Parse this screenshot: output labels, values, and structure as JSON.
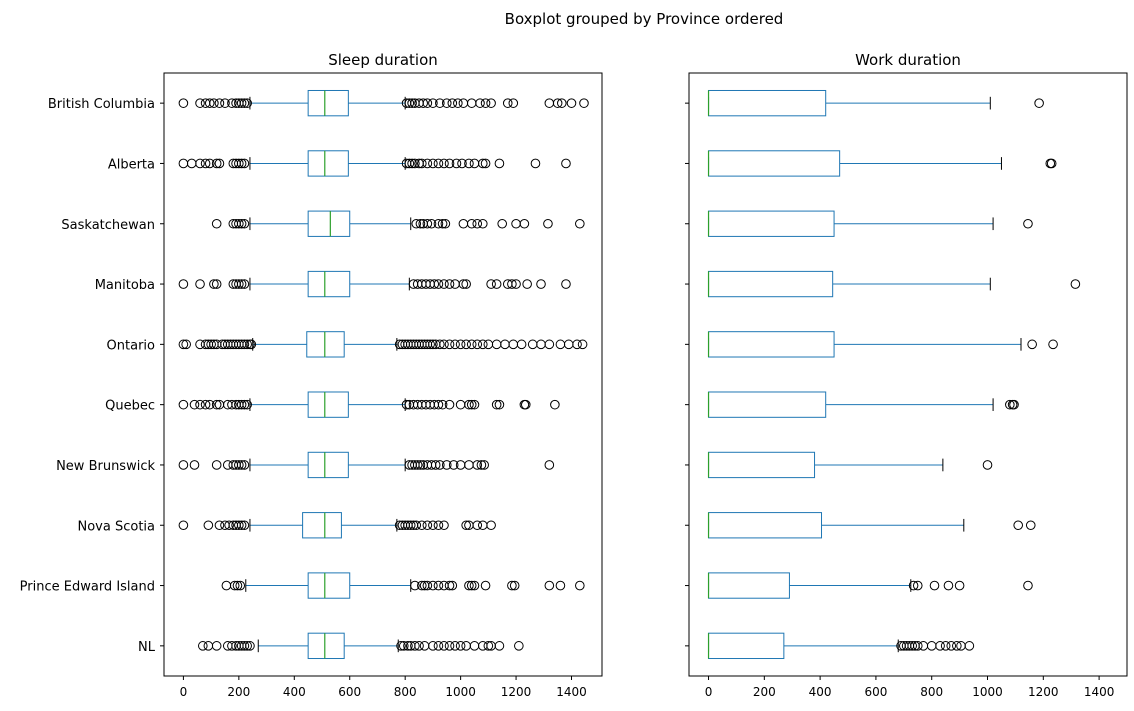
{
  "chart_data": {
    "type": "boxplot",
    "suptitle": "Boxplot grouped by Province ordered",
    "orientation": "horizontal",
    "categories": [
      "British Columbia",
      "Alberta",
      "Saskatchewan",
      "Manitoba",
      "Ontario",
      "Quebec",
      "New Brunswick",
      "Nova Scotia",
      "Prince Edward Island",
      "NL"
    ],
    "box_color": "#1f77b4",
    "median_color": "#2ca02c",
    "whisker_cap_color": "#000000",
    "flier_marker": "open-circle",
    "panels": [
      {
        "title": "Sleep duration",
        "xlim": [
          -70,
          1510
        ],
        "xticks": [
          0,
          200,
          400,
          600,
          800,
          1000,
          1200,
          1400
        ],
        "xtick_labels": [
          "0",
          "200",
          "400",
          "600",
          "800",
          "1000",
          "1200",
          "1400"
        ],
        "boxes": [
          {
            "category": "British Columbia",
            "whislo": 240,
            "q1": 450,
            "med": 510,
            "q3": 595,
            "whishi": 800,
            "fliers": [
              0,
              60,
              80,
              95,
              110,
              130,
              150,
              175,
              190,
              200,
              210,
              220,
              230,
              805,
              815,
              825,
              835,
              850,
              865,
              880,
              900,
              925,
              950,
              970,
              990,
              1010,
              1040,
              1070,
              1090,
              1110,
              1170,
              1190,
              1320,
              1350,
              1365,
              1400,
              1445
            ]
          },
          {
            "category": "Alberta",
            "whislo": 240,
            "q1": 450,
            "med": 510,
            "q3": 595,
            "whishi": 800,
            "fliers": [
              0,
              30,
              60,
              80,
              95,
              120,
              130,
              180,
              190,
              200,
              210,
              220,
              805,
              815,
              825,
              835,
              850,
              860,
              880,
              900,
              920,
              940,
              960,
              985,
              1005,
              1030,
              1050,
              1080,
              1090,
              1140,
              1270,
              1380
            ]
          },
          {
            "category": "Saskatchewan",
            "whislo": 240,
            "q1": 450,
            "med": 530,
            "q3": 600,
            "whishi": 820,
            "fliers": [
              120,
              180,
              190,
              200,
              210,
              220,
              840,
              855,
              865,
              880,
              895,
              920,
              935,
              945,
              1010,
              1040,
              1060,
              1080,
              1150,
              1200,
              1230,
              1315,
              1430
            ]
          },
          {
            "category": "Manitoba",
            "whislo": 240,
            "q1": 450,
            "med": 510,
            "q3": 600,
            "whishi": 815,
            "fliers": [
              0,
              60,
              110,
              120,
              180,
              190,
              200,
              210,
              220,
              830,
              845,
              860,
              875,
              890,
              905,
              920,
              940,
              960,
              980,
              1010,
              1020,
              1110,
              1130,
              1170,
              1185,
              1200,
              1240,
              1290,
              1380
            ]
          },
          {
            "category": "Ontario",
            "whislo": 250,
            "q1": 445,
            "med": 510,
            "q3": 580,
            "whishi": 770,
            "fliers": [
              0,
              10,
              60,
              80,
              90,
              100,
              110,
              120,
              140,
              150,
              160,
              170,
              180,
              190,
              200,
              210,
              220,
              230,
              240,
              245,
              780,
              790,
              800,
              810,
              820,
              830,
              840,
              850,
              860,
              870,
              880,
              890,
              900,
              910,
              925,
              940,
              960,
              980,
              1000,
              1020,
              1040,
              1060,
              1080,
              1100,
              1130,
              1160,
              1190,
              1220,
              1260,
              1290,
              1320,
              1360,
              1390,
              1420,
              1440
            ]
          },
          {
            "category": "Quebec",
            "whislo": 240,
            "q1": 450,
            "med": 510,
            "q3": 595,
            "whishi": 800,
            "fliers": [
              0,
              40,
              60,
              80,
              95,
              120,
              130,
              160,
              175,
              190,
              200,
              210,
              220,
              230,
              805,
              815,
              830,
              845,
              860,
              875,
              890,
              905,
              920,
              935,
              960,
              1000,
              1030,
              1040,
              1050,
              1130,
              1140,
              1230,
              1235,
              1340
            ]
          },
          {
            "category": "New Brunswick",
            "whislo": 240,
            "q1": 450,
            "med": 510,
            "q3": 595,
            "whishi": 800,
            "fliers": [
              0,
              40,
              120,
              160,
              180,
              190,
              200,
              210,
              220,
              815,
              825,
              835,
              845,
              855,
              865,
              880,
              895,
              910,
              925,
              950,
              975,
              1000,
              1030,
              1060,
              1075,
              1085,
              1320
            ]
          },
          {
            "category": "Nova Scotia",
            "whislo": 240,
            "q1": 430,
            "med": 510,
            "q3": 570,
            "whishi": 770,
            "fliers": [
              0,
              90,
              130,
              150,
              165,
              180,
              190,
              200,
              210,
              220,
              780,
              790,
              800,
              810,
              820,
              830,
              840,
              860,
              880,
              900,
              920,
              940,
              1020,
              1030,
              1060,
              1080,
              1110
            ]
          },
          {
            "category": "Prince Edward Island",
            "whislo": 225,
            "q1": 450,
            "med": 510,
            "q3": 600,
            "whishi": 820,
            "fliers": [
              155,
              185,
              195,
              205,
              835,
              860,
              870,
              880,
              900,
              920,
              940,
              960,
              970,
              1030,
              1040,
              1050,
              1090,
              1185,
              1195,
              1320,
              1360,
              1430
            ]
          },
          {
            "category": "NL",
            "whislo": 270,
            "q1": 450,
            "med": 510,
            "q3": 580,
            "whishi": 775,
            "fliers": [
              70,
              90,
              120,
              160,
              175,
              190,
              200,
              210,
              220,
              230,
              240,
              785,
              795,
              810,
              820,
              835,
              850,
              870,
              900,
              920,
              940,
              960,
              980,
              1000,
              1020,
              1050,
              1080,
              1100,
              1110,
              1140,
              1210
            ]
          }
        ]
      },
      {
        "title": "Work duration",
        "xlim": [
          -70,
          1500
        ],
        "xticks": [
          0,
          200,
          400,
          600,
          800,
          1000,
          1200,
          1400
        ],
        "xtick_labels": [
          "0",
          "200",
          "400",
          "600",
          "800",
          "1000",
          "1200",
          "1400"
        ],
        "boxes": [
          {
            "category": "British Columbia",
            "whislo": 0,
            "q1": 0,
            "med": 0,
            "q3": 420,
            "whishi": 1010,
            "fliers": [
              1185
            ]
          },
          {
            "category": "Alberta",
            "whislo": 0,
            "q1": 0,
            "med": 0,
            "q3": 470,
            "whishi": 1050,
            "fliers": [
              1225,
              1230
            ]
          },
          {
            "category": "Saskatchewan",
            "whislo": 0,
            "q1": 0,
            "med": 0,
            "q3": 450,
            "whishi": 1020,
            "fliers": [
              1145
            ]
          },
          {
            "category": "Manitoba",
            "whislo": 0,
            "q1": 0,
            "med": 0,
            "q3": 445,
            "whishi": 1010,
            "fliers": [
              1315
            ]
          },
          {
            "category": "Ontario",
            "whislo": 0,
            "q1": 0,
            "med": 0,
            "q3": 450,
            "whishi": 1120,
            "fliers": [
              1160,
              1235
            ]
          },
          {
            "category": "Quebec",
            "whislo": 0,
            "q1": 0,
            "med": 0,
            "q3": 420,
            "whishi": 1020,
            "fliers": [
              1080,
              1090,
              1095
            ]
          },
          {
            "category": "New Brunswick",
            "whislo": 0,
            "q1": 0,
            "med": 0,
            "q3": 380,
            "whishi": 840,
            "fliers": [
              1000
            ]
          },
          {
            "category": "Nova Scotia",
            "whislo": 0,
            "q1": 0,
            "med": 0,
            "q3": 405,
            "whishi": 915,
            "fliers": [
              1110,
              1155
            ]
          },
          {
            "category": "Prince Edward Island",
            "whislo": 0,
            "q1": 0,
            "med": 0,
            "q3": 290,
            "whishi": 725,
            "fliers": [
              735,
              750,
              810,
              860,
              900,
              1145
            ]
          },
          {
            "category": "NL",
            "whislo": 0,
            "q1": 0,
            "med": 0,
            "q3": 270,
            "whishi": 680,
            "fliers": [
              690,
              700,
              710,
              720,
              730,
              740,
              750,
              770,
              800,
              830,
              850,
              870,
              890,
              905,
              935
            ]
          }
        ]
      }
    ]
  }
}
